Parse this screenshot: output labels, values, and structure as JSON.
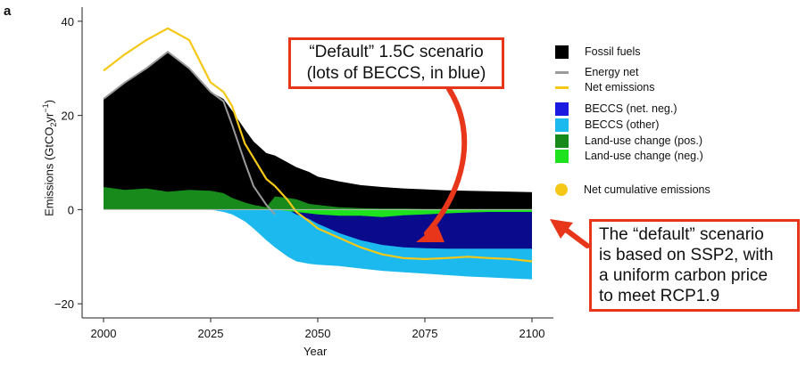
{
  "panel_label": "a",
  "callouts": {
    "top_line1": "“Default” 1.5C scenario",
    "top_line2": "(lots of BECCS, in blue)",
    "right_line1": "The “default” scenario",
    "right_line2": "is based on SSP2, with",
    "right_line3": "a uniform carbon price",
    "right_line4": "to meet RCP1.9"
  },
  "colors": {
    "fossil": "#000000",
    "energy_net": "#9a9a9a",
    "net_emissions": "#f5c818",
    "beccs_net_neg": "#0a0a8c",
    "beccs_other": "#1cb9ee",
    "luc_pos": "#178a1b",
    "luc_neg": "#1ee21e",
    "cumulative": "#f5c818",
    "callout_border": "#e8361b"
  },
  "legend": [
    {
      "label": "Fossil fuels",
      "kind": "box",
      "color": "#000000"
    },
    {
      "label": "Energy net",
      "kind": "line",
      "color": "#9a9a9a"
    },
    {
      "label": "Net emissions",
      "kind": "line",
      "color": "#f5c818"
    },
    {
      "label": "BECCS (net. neg.)",
      "kind": "box",
      "color": "#1a1ae0"
    },
    {
      "label": "BECCS (other)",
      "kind": "box",
      "color": "#1cb9ee"
    },
    {
      "label": "Land-use change (pos.)",
      "kind": "box",
      "color": "#178a1b"
    },
    {
      "label": "Land-use change (neg.)",
      "kind": "box",
      "color": "#1ee21e"
    },
    {
      "label": "Net cumulative emissions",
      "kind": "dot",
      "color": "#f5c818"
    }
  ],
  "chart_data": {
    "type": "area",
    "xlabel": "Year",
    "ylabel_parts": [
      "Emissions (GtCO",
      "2",
      "yr",
      "−1",
      ")"
    ],
    "xlim": [
      1995,
      2105
    ],
    "ylim": [
      -23,
      43
    ],
    "xticks": [
      2000,
      2025,
      2050,
      2075,
      2100
    ],
    "yticks": [
      -20,
      0,
      20,
      40
    ],
    "ytick_labels": [
      "−20",
      "0",
      "20",
      "40"
    ],
    "grid": false,
    "legend_position": "right",
    "x": [
      2000,
      2005,
      2010,
      2015,
      2020,
      2025,
      2028,
      2030,
      2033,
      2035,
      2038,
      2040,
      2043,
      2045,
      2048,
      2050,
      2055,
      2060,
      2065,
      2070,
      2075,
      2080,
      2085,
      2090,
      2095,
      2100
    ],
    "series": [
      {
        "name": "Fossil fuels",
        "values": [
          23.5,
          27,
          30,
          33.5,
          30,
          25,
          23.5,
          21,
          17,
          14.5,
          12,
          11.5,
          10,
          9,
          8,
          7,
          6,
          5.2,
          4.8,
          4.5,
          4.3,
          4.1,
          4,
          3.9,
          3.8,
          3.7
        ]
      },
      {
        "name": "Energy net",
        "values": [
          23.5,
          27,
          30,
          33.5,
          30,
          25,
          23,
          18,
          10,
          5,
          1,
          -1,
          null,
          null,
          null,
          null,
          null,
          null,
          null,
          null,
          null,
          null,
          null,
          null,
          null,
          null
        ]
      },
      {
        "name": "Net emissions",
        "values": [
          29.5,
          33,
          36,
          38.5,
          36,
          27,
          25,
          22,
          14,
          11,
          6.5,
          5,
          2,
          -0.5,
          -2.5,
          -4,
          -6,
          -8,
          -9.5,
          -10.3,
          -10.5,
          -10.3,
          -10,
          -10.3,
          -10.5,
          -11
        ]
      },
      {
        "name": "BECCS (net. neg.)",
        "values": [
          0,
          0,
          0,
          0,
          0,
          0,
          0,
          0,
          0,
          0,
          0,
          0,
          0,
          -1,
          -2,
          -3,
          -5,
          -6.5,
          -7.5,
          -8,
          -8.2,
          -8.3,
          -8.3,
          -8.3,
          -8.3,
          -8.3
        ]
      },
      {
        "name": "BECCS (other)",
        "values": [
          0,
          0,
          0,
          0,
          0,
          0,
          -0.5,
          -1,
          -2.5,
          -4,
          -6.5,
          -8,
          -10,
          -11,
          -11.5,
          -11.7,
          -12,
          -12.5,
          -13,
          -13.3,
          -13.6,
          -13.9,
          -14.2,
          -14.4,
          -14.6,
          -14.8
        ]
      },
      {
        "name": "Land-use change (pos.)",
        "values": [
          4.8,
          4.2,
          4.5,
          3.8,
          4.2,
          4,
          3.5,
          2.5,
          1.5,
          1,
          0.5,
          2.8,
          2.5,
          2.2,
          1.2,
          1,
          0.5,
          0.3,
          0.2,
          0.2,
          0.1,
          0.1,
          0.1,
          0.1,
          0.1,
          0.1
        ]
      },
      {
        "name": "Land-use change (neg.)",
        "values": [
          0,
          0,
          0,
          0,
          0,
          0,
          0,
          0,
          0,
          0,
          0,
          0,
          -0.3,
          -0.5,
          -0.8,
          -1,
          -1.3,
          -1.3,
          -1.6,
          -1.2,
          -1,
          -0.8,
          -0.6,
          -0.5,
          -0.5,
          -0.5
        ]
      }
    ]
  }
}
